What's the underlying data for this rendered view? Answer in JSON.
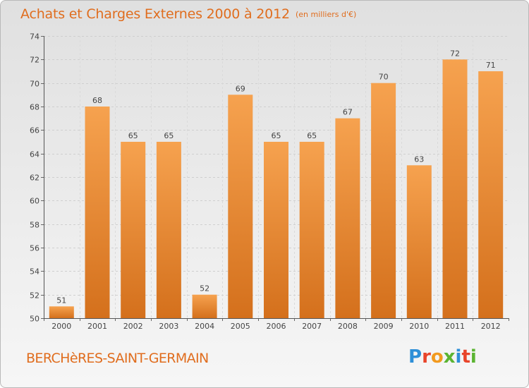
{
  "title": "Achats et Charges Externes 2000 à 2012",
  "subtitle": "(en milliers d'€)",
  "place": "BERCHèRES-SAINT-GERMAIN",
  "logo": {
    "text": "Proxiti",
    "letter_colors": [
      "#2e8fd8",
      "#e8442a",
      "#f29a1f",
      "#5bb432",
      "#2e8fd8",
      "#e8442a",
      "#5bb432"
    ]
  },
  "colors": {
    "accent": "#e06d1e",
    "bar_top": "#f6a24f",
    "bar_bottom": "#d4701c"
  },
  "chart_data": {
    "type": "bar",
    "categories": [
      "2000",
      "2001",
      "2002",
      "2003",
      "2004",
      "2005",
      "2006",
      "2007",
      "2008",
      "2009",
      "2010",
      "2011",
      "2012"
    ],
    "values": [
      51,
      68,
      65,
      65,
      52,
      69,
      65,
      65,
      67,
      70,
      63,
      72,
      71
    ],
    "ylim": [
      50,
      74
    ],
    "yticks": [
      50,
      52,
      54,
      56,
      58,
      60,
      62,
      64,
      66,
      68,
      70,
      72,
      74
    ],
    "grid": true
  }
}
